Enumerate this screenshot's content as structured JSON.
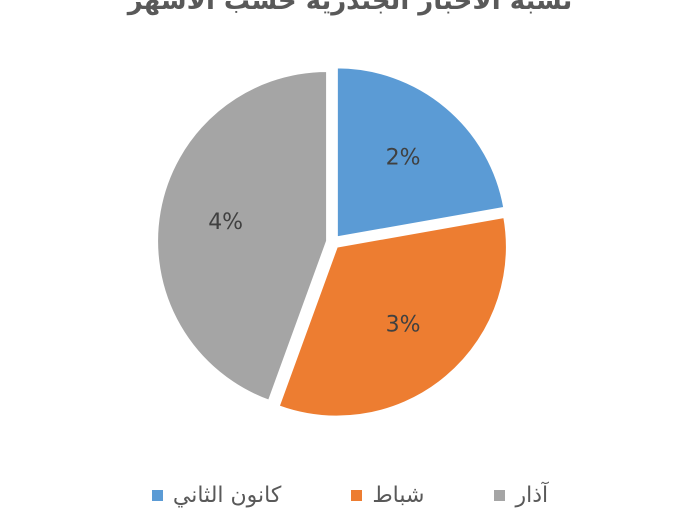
{
  "chart_data": {
    "type": "pie",
    "title": "نسبة الأخبار الجندرية حسب الأشهر",
    "categories": [
      "كانون الثاني",
      "شباط",
      "آذار"
    ],
    "values": [
      2,
      3,
      4
    ],
    "labels": [
      "2%",
      "3%",
      "4%"
    ],
    "colors": [
      "#5B9BD5",
      "#ED7D31",
      "#A5A5A5"
    ],
    "legend_position": "bottom"
  }
}
